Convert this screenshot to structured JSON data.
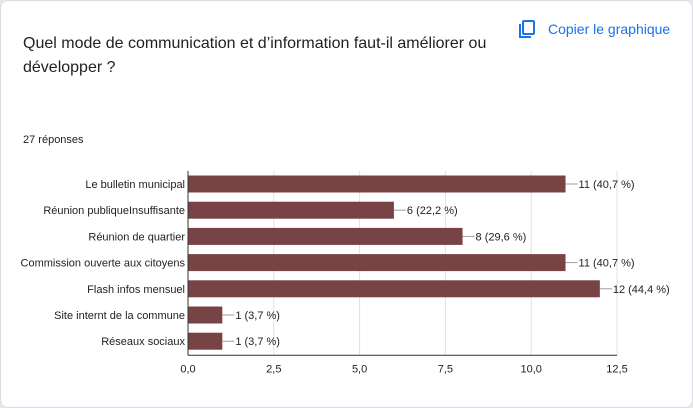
{
  "header": {
    "question": "Quel mode de communication et d’information faut-il améliorer ou développer ?",
    "copy_label": "Copier le graphique",
    "copy_icon": "copy-icon",
    "responses": "27 réponses"
  },
  "colors": {
    "accent": "#1a73e8",
    "bar": "#774344"
  },
  "chart_data": {
    "type": "bar",
    "orientation": "horizontal",
    "categories": [
      "Le bulletin municipal",
      "Réunion publiqueInsuffisante",
      "Réunion de quartier",
      "Commission ouverte aux citoyens",
      "Flash infos mensuel",
      "Site internt de la commune",
      "Réseaux sociaux"
    ],
    "values": [
      11,
      6,
      8,
      11,
      12,
      1,
      1
    ],
    "data_labels": [
      "11 (40,7 %)",
      "6 (22,2 %)",
      "8 (29,6 %)",
      "11 (40,7 %)",
      "12 (44,4 %)",
      "1 (3,7 %)",
      "1 (3,7 %)"
    ],
    "xlim": [
      0,
      12.5
    ],
    "xticks": [
      0,
      2.5,
      5,
      7.5,
      10,
      12.5
    ],
    "xtick_labels": [
      "0,0",
      "2,5",
      "5,0",
      "7,5",
      "10,0",
      "12,5"
    ],
    "grid": true
  }
}
